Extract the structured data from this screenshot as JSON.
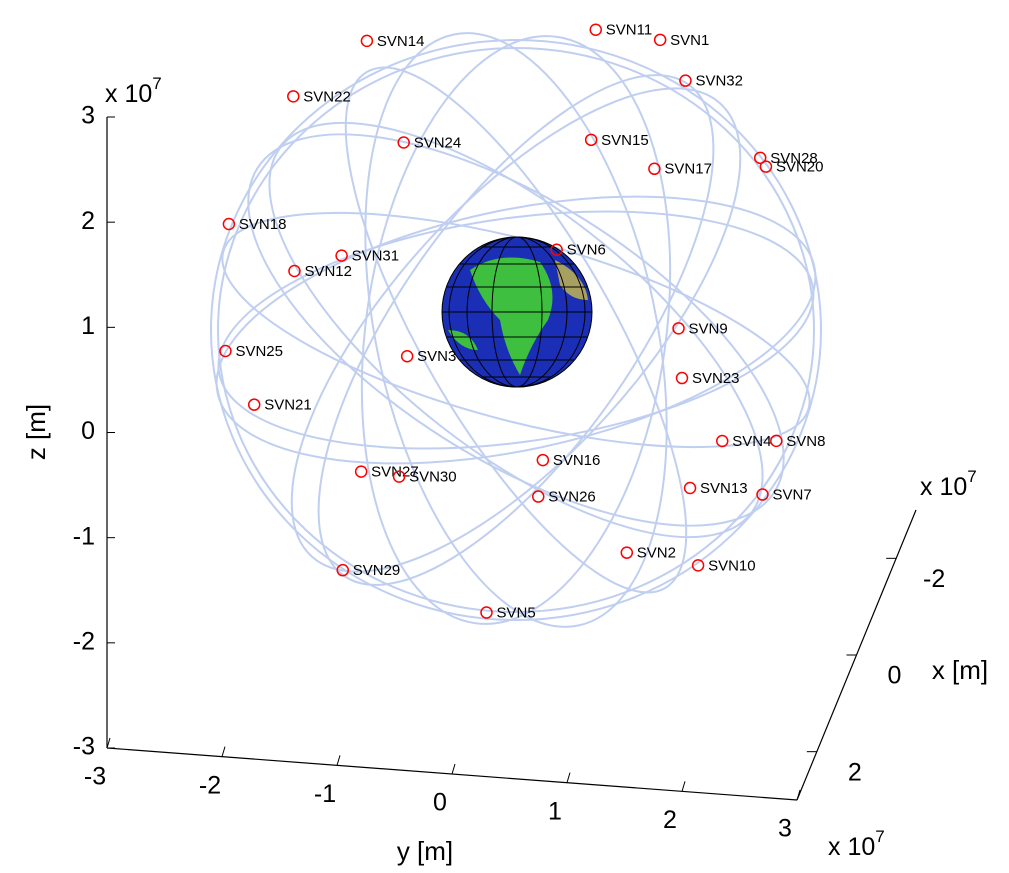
{
  "chart_data": {
    "type": "scatter3d",
    "x_label": "x [m]",
    "y_label": "y [m]",
    "z_label": "z [m]",
    "axis_scale": {
      "base": "x 10",
      "exponent": "7"
    },
    "xlim": [
      -3,
      3
    ],
    "xticks": [
      -2,
      0,
      2
    ],
    "ylim": [
      -3,
      3
    ],
    "yticks": [
      -3,
      -2,
      -1,
      0,
      1,
      2,
      3
    ],
    "zlim": [
      -3,
      3
    ],
    "zticks": [
      -3,
      -2,
      -1,
      0,
      1,
      2,
      3
    ],
    "points": {
      "color": "#ff0000",
      "names": [
        "SVN11",
        "SVN1",
        "SVN14",
        "SVN32",
        "SVN22",
        "SVN24",
        "SVN15",
        "SVN17",
        "SVN28",
        "SVN20",
        "SVN18",
        "SVN31",
        "SVN12",
        "SVN6",
        "SVN9",
        "SVN25",
        "SVN3",
        "SVN23",
        "SVN21",
        "SVN4",
        "SVN8",
        "SVN16",
        "SVN27",
        "SVN30",
        "SVN26",
        "SVN13",
        "SVN7",
        "SVN2",
        "SVN10",
        "SVN29",
        "SVN5"
      ],
      "y": [
        1.25,
        1.81,
        -0.74,
        2.03,
        -1.38,
        -0.42,
        1.21,
        1.76,
        2.68,
        2.73,
        -1.94,
        -0.96,
        -1.37,
        0.91,
        1.97,
        -1.97,
        -0.39,
        2.0,
        -1.72,
        2.35,
        2.82,
        0.79,
        -0.79,
        -0.46,
        0.75,
        2.07,
        2.7,
        1.52,
        2.14,
        -0.95,
        0.3
      ],
      "z": [
        4.18,
        4.13,
        3.91,
        3.76,
        3.33,
        2.97,
        3.13,
        2.9,
        3.08,
        3.0,
        2.07,
        1.85,
        1.67,
        2.06,
        1.4,
        0.86,
        0.94,
        0.93,
        0.37,
        0.36,
        0.4,
        0.05,
        -0.19,
        -0.21,
        -0.3,
        -0.11,
        -0.12,
        -0.77,
        -0.84,
        -1.14,
        -1.44
      ]
    },
    "orbit_color": "#c0cff0"
  }
}
